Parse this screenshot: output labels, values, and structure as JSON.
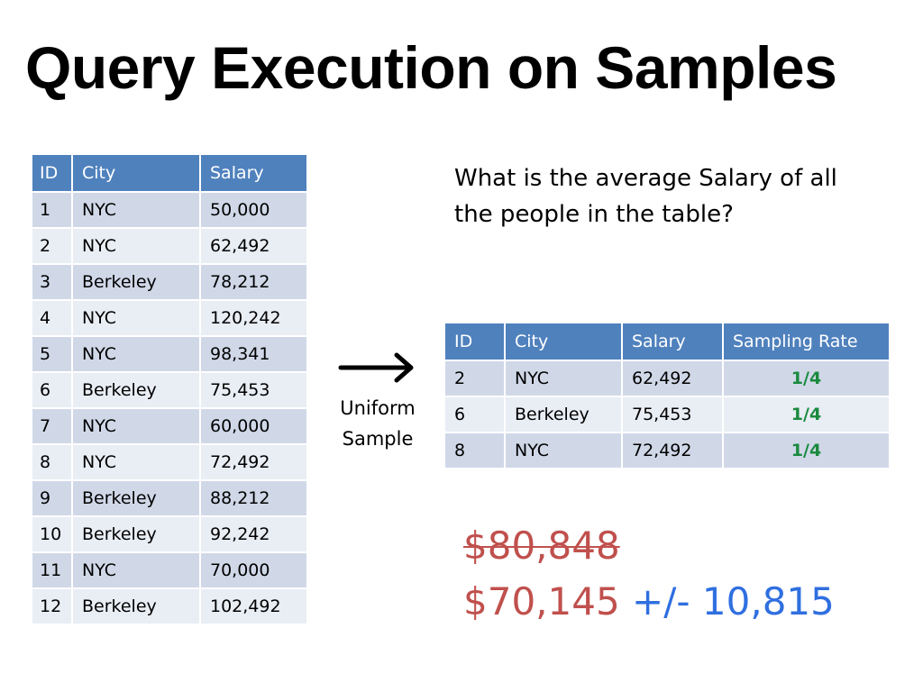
{
  "slide": {
    "title": "Query Execution on Samples",
    "question": "What is the average Salary of all the people in the table?",
    "arrow_label_line1": "Uniform",
    "arrow_label_line2": "Sample"
  },
  "full_table": {
    "headers": [
      "ID",
      "City",
      "Salary"
    ],
    "rows": [
      [
        "1",
        "NYC",
        "50,000"
      ],
      [
        "2",
        "NYC",
        "62,492"
      ],
      [
        "3",
        "Berkeley",
        "78,212"
      ],
      [
        "4",
        "NYC",
        "120,242"
      ],
      [
        "5",
        "NYC",
        "98,341"
      ],
      [
        "6",
        "Berkeley",
        "75,453"
      ],
      [
        "7",
        "NYC",
        "60,000"
      ],
      [
        "8",
        "NYC",
        "72,492"
      ],
      [
        "9",
        "Berkeley",
        "88,212"
      ],
      [
        "10",
        "Berkeley",
        "92,242"
      ],
      [
        "11",
        "NYC",
        "70,000"
      ],
      [
        "12",
        "Berkeley",
        "102,492"
      ]
    ]
  },
  "sample_table": {
    "headers": [
      "ID",
      "City",
      "Salary",
      "Sampling Rate"
    ],
    "rows": [
      [
        "2",
        "NYC",
        "62,492",
        "1/4"
      ],
      [
        "6",
        "Berkeley",
        "75,453",
        "1/4"
      ],
      [
        "8",
        "NYC",
        "72,492",
        "1/4"
      ]
    ]
  },
  "result": {
    "true_value": "$80,848",
    "estimate": "$70,145",
    "error_bound": "+/- 10,815"
  },
  "colors": {
    "header_bg": "#4f81bd",
    "row_odd": "#d0d8e8",
    "row_even": "#e9edf4",
    "rate_green": "#1a8a3e",
    "result_red": "#c0504d",
    "error_blue": "#2f6fe0"
  }
}
